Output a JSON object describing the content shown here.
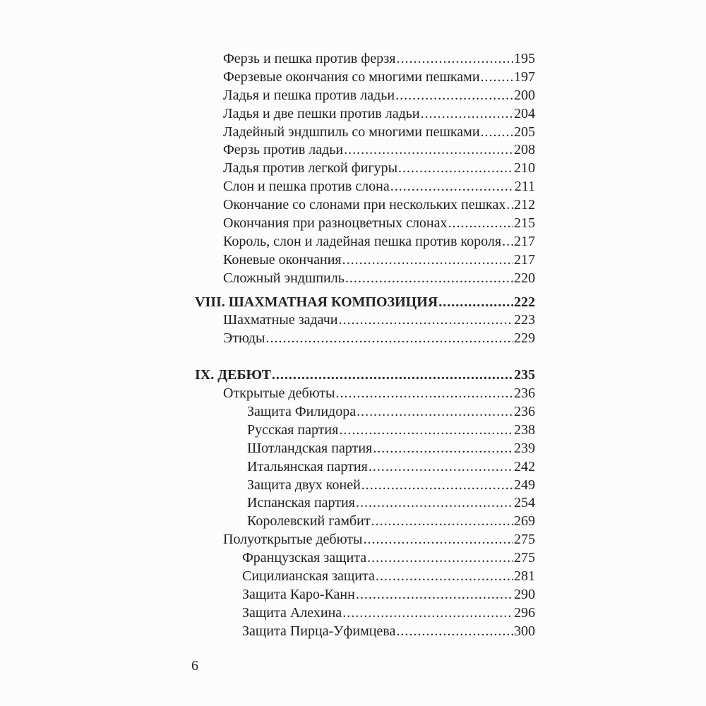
{
  "page_number": "6",
  "sections": [
    {
      "heading": null,
      "entries": [
        {
          "title": "Ферзь и пешка против ферзя",
          "page": "195",
          "level": 1
        },
        {
          "title": "Ферзевые окончания со многими пешками",
          "page": "197",
          "level": 1
        },
        {
          "title": "Ладья и пешка против ладьи",
          "page": "200",
          "level": 1
        },
        {
          "title": "Ладья и две пешки против ладьи",
          "page": "204",
          "level": 1
        },
        {
          "title": "Ладейный эндшпиль со многими пешками",
          "page": "205",
          "level": 1
        },
        {
          "title": "Ферзь против ладьи",
          "page": "208",
          "level": 1
        },
        {
          "title": "Ладья против легкой фигуры",
          "page": "210",
          "level": 1
        },
        {
          "title": "Слон и пешка против слона",
          "page": "211",
          "level": 1
        },
        {
          "title": "Окончание со слонами при нескольких пешках",
          "page": "212",
          "level": 1
        },
        {
          "title": "Окончания при разноцветных слонах",
          "page": "215",
          "level": 1
        },
        {
          "title": "Король, слон и ладейная пешка против короля",
          "page": "217",
          "level": 1
        },
        {
          "title": "Коневые окончания",
          "page": "217",
          "level": 1
        },
        {
          "title": "Сложный эндшпиль",
          "page": "220",
          "level": 1
        }
      ]
    },
    {
      "heading": {
        "title": "VIII. ШАХМАТНАЯ КОМПОЗИЦИЯ",
        "page": "222"
      },
      "entries": [
        {
          "title": "Шахматные задачи",
          "page": "223",
          "level": 1
        },
        {
          "title": "Этюды",
          "page": "229",
          "level": 1
        }
      ]
    },
    {
      "heading": {
        "title": "IX. ДЕБЮТ",
        "page": "235"
      },
      "entries": [
        {
          "title": "Открытые дебюты",
          "page": "236",
          "level": 1
        },
        {
          "title": "Защита Филидора",
          "page": "236",
          "level": 2
        },
        {
          "title": "Русская партия",
          "page": "238",
          "level": 2
        },
        {
          "title": "Шотландская партия",
          "page": "239",
          "level": 2
        },
        {
          "title": "Итальянская партия",
          "page": "242",
          "level": 2
        },
        {
          "title": "Защита двух коней",
          "page": "249",
          "level": 2
        },
        {
          "title": "Испанская партия",
          "page": "254",
          "level": 2
        },
        {
          "title": "Королевский гамбит",
          "page": "269",
          "level": 2
        },
        {
          "title": "Полуоткрытые дебюты",
          "page": "275",
          "level": 1
        },
        {
          "title": "Французская защита",
          "page": "275",
          "level": 3
        },
        {
          "title": "Сицилианская защита",
          "page": "281",
          "level": 3
        },
        {
          "title": "Защита Каро-Канн",
          "page": "290",
          "level": 3
        },
        {
          "title": "Защита Алехина",
          "page": "296",
          "level": 3
        },
        {
          "title": "Защита Пирца-Уфимцева",
          "page": "300",
          "level": 3
        }
      ]
    }
  ]
}
